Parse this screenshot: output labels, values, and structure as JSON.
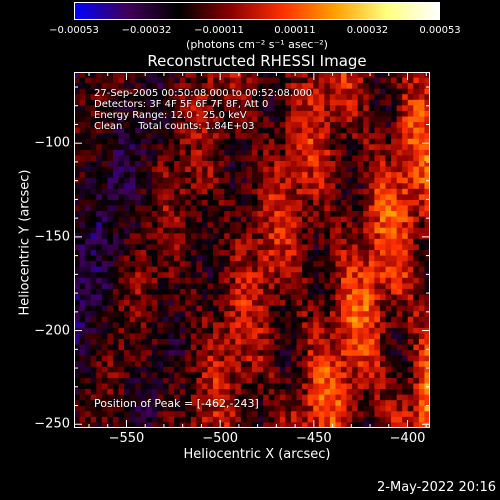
{
  "chart_data": {
    "type": "heatmap",
    "title": "Reconstructed RHESSI Image",
    "xlabel": "Heliocentric X (arcsec)",
    "ylabel": "Heliocentric Y (arcsec)",
    "xlim": [
      -578,
      -388
    ],
    "ylim": [
      -252,
      -62
    ],
    "xticks": [
      -550,
      -500,
      -450,
      -400
    ],
    "xtick_labels": [
      "−550",
      "−500",
      "−450",
      "−400"
    ],
    "yticks": [
      -100,
      -150,
      -200,
      -250
    ],
    "ytick_labels": [
      "−100",
      "−150",
      "−200",
      "−250"
    ],
    "colorbar": {
      "range": [
        -0.00053,
        0.00053
      ],
      "ticks": [
        -0.00053,
        -0.00032,
        -0.00011,
        0.00011,
        0.00032,
        0.00053
      ],
      "tick_labels": [
        "−0.00053",
        "−0.00032",
        "−0.00011",
        "0.00011",
        "0.00032",
        "0.00053"
      ],
      "unit_label": "(photons cm⁻² s⁻¹ asec⁻²)",
      "colormap": [
        "#0000ff",
        "#40005a",
        "#000000",
        "#8b0000",
        "#ff3000",
        "#ffa000",
        "#ffff80",
        "#ffffff"
      ]
    },
    "annotations": {
      "time": "27-Sep-2005 00:50:08.000 to 00:52:08.000",
      "detectors": "Detectors: 3F 4F 5F 6F 7F 8F, Att 0",
      "energy": "Energy Range: 12.0 - 25.0 keV",
      "method": "Clean     Total counts: 1.84E+03",
      "peak": "Position of Peak = [-462,-243]"
    },
    "peak_position": [
      -462,
      -243
    ],
    "grid": false
  },
  "footer": {
    "timestamp": "2-May-2022 20:16"
  }
}
